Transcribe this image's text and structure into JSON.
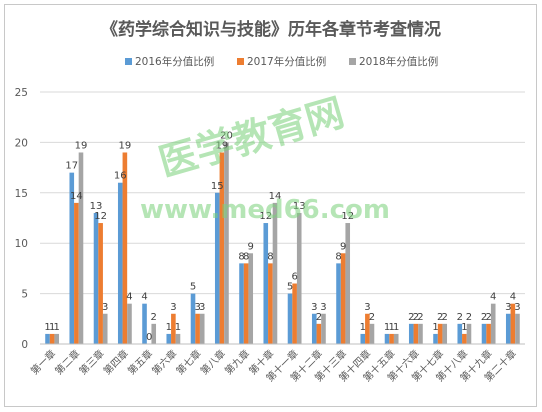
{
  "chart_data": {
    "type": "bar",
    "title": "《药学综合知识与技能》历年各章节考查情况",
    "xlabel": "",
    "ylabel": "",
    "ylim": [
      0,
      25
    ],
    "yticks": [
      "0",
      "5",
      "10",
      "15",
      "20",
      "25"
    ],
    "grid": true,
    "legend_position": "top",
    "categories": [
      "第一章",
      "第二章",
      "第三章",
      "第四章",
      "第五章",
      "第六章",
      "第七章",
      "第八章",
      "第九章",
      "第十章",
      "第十一章",
      "第十二章",
      "第十三章",
      "第十四章",
      "第十五章",
      "第十六章",
      "第十七章",
      "第十八章",
      "第十九章",
      "第二十章"
    ],
    "series": [
      {
        "name": "2016年分值比例",
        "color": "#5b9bd5",
        "values": [
          1,
          17,
          13,
          16,
          4,
          1,
          5,
          15,
          8,
          12,
          5,
          3,
          8,
          1,
          1,
          2,
          1,
          2,
          2,
          3
        ]
      },
      {
        "name": "2017年分值比例",
        "color": "#ed7d31",
        "values": [
          1,
          14,
          12,
          19,
          0,
          3,
          3,
          19,
          8,
          8,
          6,
          2,
          9,
          3,
          1,
          2,
          2,
          1,
          2,
          4
        ]
      },
      {
        "name": "2018年分值比例",
        "color": "#a5a5a5",
        "values": [
          1,
          19,
          3,
          4,
          2,
          1,
          3,
          20,
          9,
          14,
          13,
          3,
          12,
          2,
          1,
          2,
          2,
          2,
          4,
          3
        ]
      }
    ]
  },
  "watermark": {
    "text_cn": "医学教育网",
    "text_url": "www.med66.com"
  }
}
